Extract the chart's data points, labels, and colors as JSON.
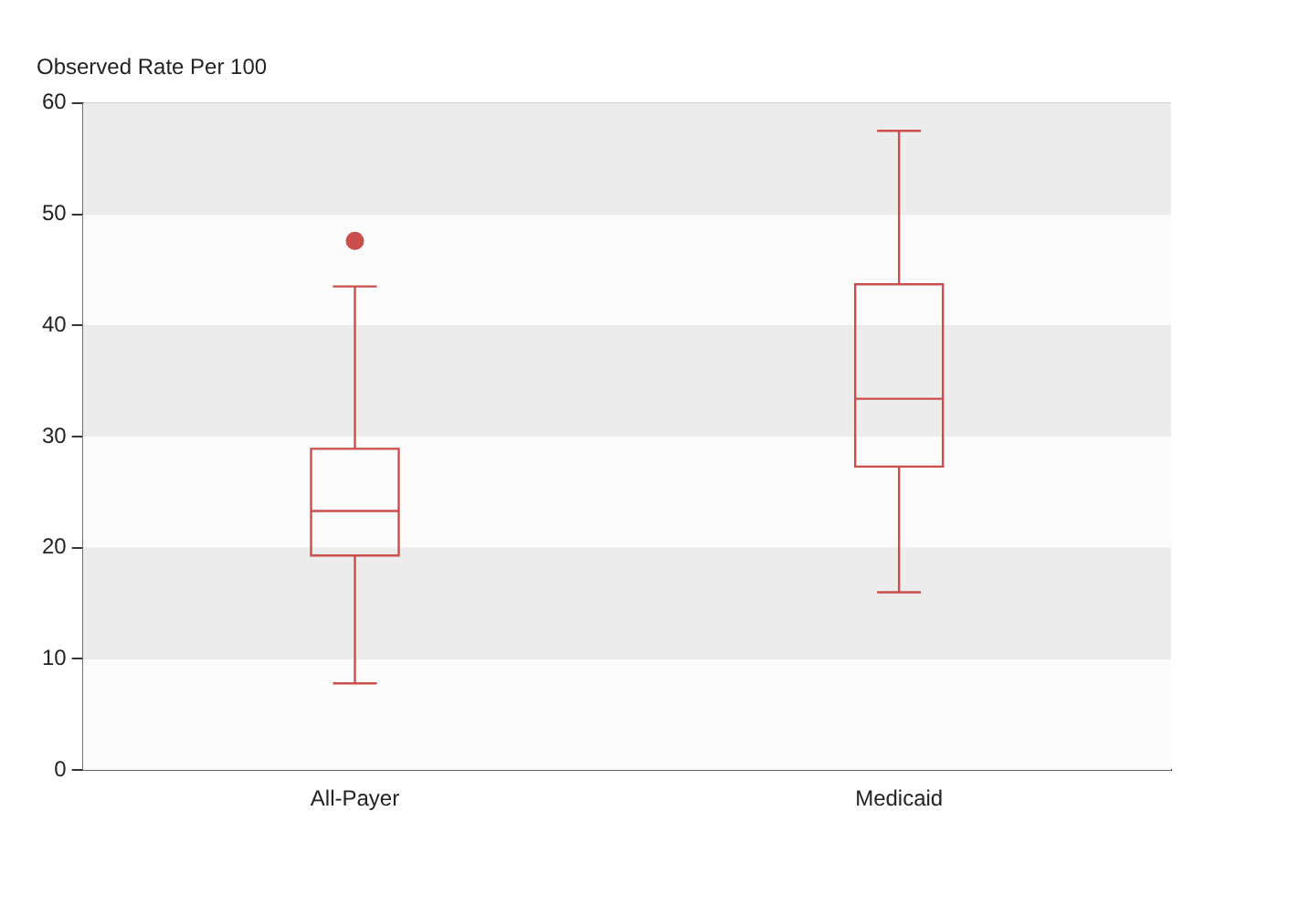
{
  "chart_data": {
    "type": "box",
    "ylabel": "Observed Rate Per 100",
    "categories": [
      "All-Payer",
      "Medicaid"
    ],
    "color": "#cc4e4c",
    "boxes": [
      {
        "low": 7.8,
        "q1": 19.3,
        "median": 23.3,
        "q3": 28.9,
        "high": 43.5,
        "outliers": [
          47.6
        ]
      },
      {
        "low": 16,
        "q1": 27.3,
        "median": 33.4,
        "q3": 43.7,
        "high": 57.5
      }
    ],
    "ylim": [
      0,
      60
    ],
    "yticks": [
      0,
      10,
      20,
      30,
      40,
      50,
      60
    ],
    "grid": "y",
    "legend": false
  }
}
